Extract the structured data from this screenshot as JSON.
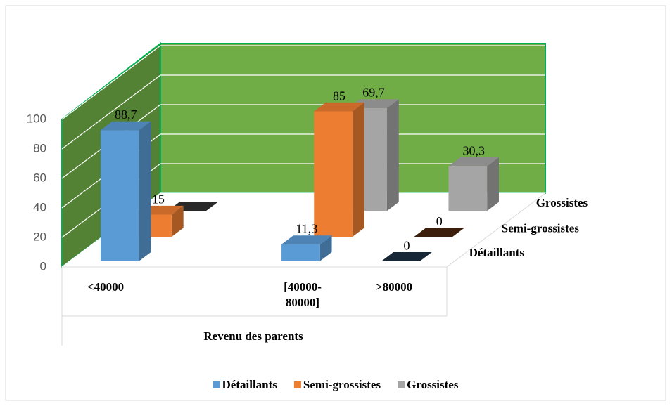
{
  "chart_data": {
    "type": "bar3d",
    "categories": [
      "<40000",
      "[40000-80000]",
      ">80000"
    ],
    "xlabel": "Revenu des parents",
    "ylim": [
      0,
      100
    ],
    "yticks": [
      0,
      20,
      40,
      60,
      80,
      100
    ],
    "grid": true,
    "legend": "bottom",
    "series": [
      {
        "name": "Détaillants",
        "color": "#5b9bd5",
        "values": [
          88.7,
          11.3,
          0
        ],
        "value_labels": [
          "88,7",
          "11,3",
          "0"
        ]
      },
      {
        "name": "Semi-grossistes",
        "color": "#ed7d31",
        "values": [
          15,
          85,
          0
        ],
        "value_labels": [
          "15",
          "85",
          "0"
        ]
      },
      {
        "name": "Grossistes",
        "color": "#a5a5a5",
        "values": [
          0,
          69.7,
          30.3
        ],
        "value_labels": [
          null,
          "69,7",
          "30,3"
        ]
      }
    ]
  }
}
